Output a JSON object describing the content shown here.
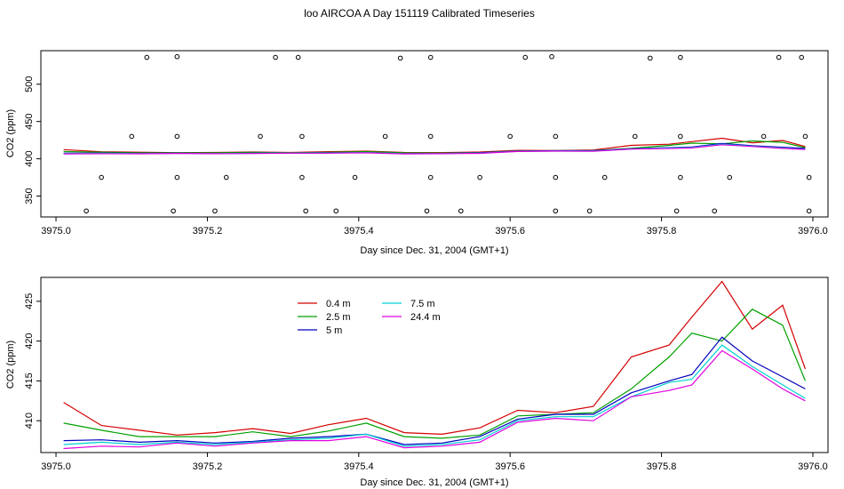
{
  "title": "loo AIRCOA A  Day 151119  Calibrated Timeseries",
  "colors": {
    "0.4 m": "#d40000",
    "2.5 m": "#00a000",
    "5 m": "#0000c0",
    "7.5 m": "#00d0d0",
    "24.4 m": "#e000e0"
  },
  "chart_data": [
    {
      "type": "scatter+line",
      "xlabel": "Day since Dec. 31, 2004 (GMT+1)",
      "ylabel": "CO2 (ppm)",
      "xlim": [
        3974.98,
        3976.02
      ],
      "ylim": [
        322,
        545
      ],
      "xticks": [
        "3975.0",
        "3975.2",
        "3975.4",
        "3975.6",
        "3975.8",
        "3976.0"
      ],
      "xtick_values": [
        3975.0,
        3975.2,
        3975.4,
        3975.6,
        3975.8,
        3976.0
      ],
      "yticks": [
        "350",
        "400",
        "450",
        "500"
      ],
      "ytick_values": [
        350,
        400,
        450,
        500
      ],
      "points_x": [
        3975.04,
        3975.06,
        3975.1,
        3975.12,
        3975.155,
        3975.16,
        3975.16,
        3975.16,
        3975.21,
        3975.225,
        3975.27,
        3975.29,
        3975.32,
        3975.325,
        3975.325,
        3975.33,
        3975.37,
        3975.395,
        3975.435,
        3975.455,
        3975.49,
        3975.495,
        3975.495,
        3975.495,
        3975.535,
        3975.56,
        3975.6,
        3975.62,
        3975.655,
        3975.66,
        3975.66,
        3975.66,
        3975.705,
        3975.725,
        3975.765,
        3975.785,
        3975.82,
        3975.825,
        3975.825,
        3975.825,
        3975.87,
        3975.89,
        3975.935,
        3975.955,
        3975.985,
        3975.99,
        3975.995,
        3975.995
      ],
      "points_y": [
        330,
        375,
        430,
        536,
        330,
        375,
        430,
        537,
        330,
        375,
        430,
        536,
        536,
        430,
        375,
        330,
        330,
        375,
        430,
        535,
        330,
        375,
        430,
        536,
        330,
        375,
        430,
        536,
        537,
        430,
        375,
        330,
        330,
        375,
        430,
        535,
        330,
        375,
        430,
        536,
        330,
        375,
        430,
        536,
        536,
        430,
        375,
        330
      ]
    },
    {
      "type": "line",
      "xlabel": "Day since Dec. 31, 2004 (GMT+1)",
      "ylabel": "CO2 (ppm)",
      "xlim": [
        3974.98,
        3976.02
      ],
      "ylim": [
        406,
        428
      ],
      "xticks": [
        "3975.0",
        "3975.2",
        "3975.4",
        "3975.6",
        "3975.8",
        "3976.0"
      ],
      "xtick_values": [
        3975.0,
        3975.2,
        3975.4,
        3975.6,
        3975.8,
        3976.0
      ],
      "yticks": [
        "410",
        "415",
        "420",
        "425"
      ],
      "ytick_values": [
        410,
        415,
        420,
        425
      ],
      "legend": [
        "0.4 m",
        "2.5 m",
        "5 m",
        "7.5 m",
        "24.4 m"
      ],
      "x": [
        3975.01,
        3975.06,
        3975.11,
        3975.16,
        3975.21,
        3975.26,
        3975.31,
        3975.36,
        3975.41,
        3975.46,
        3975.51,
        3975.56,
        3975.61,
        3975.66,
        3975.71,
        3975.76,
        3975.81,
        3975.84,
        3975.88,
        3975.92,
        3975.96,
        3975.99
      ],
      "series": [
        {
          "name": "0.4 m",
          "values": [
            412.3,
            409.4,
            408.8,
            408.2,
            408.5,
            409.0,
            408.4,
            409.5,
            410.3,
            408.5,
            408.3,
            409.1,
            411.3,
            411.0,
            411.8,
            418.0,
            419.5,
            423.0,
            427.5,
            421.5,
            424.5,
            416.5
          ]
        },
        {
          "name": "2.5 m",
          "values": [
            409.7,
            408.8,
            408.0,
            408.0,
            408.0,
            408.6,
            408.0,
            408.7,
            409.7,
            408.0,
            407.8,
            408.2,
            410.6,
            410.8,
            411.0,
            414.0,
            418.0,
            421.0,
            420.0,
            424.0,
            422.0,
            415.0
          ]
        },
        {
          "name": "5 m",
          "values": [
            407.5,
            407.6,
            407.3,
            407.5,
            407.2,
            407.4,
            407.8,
            408.0,
            408.3,
            407.0,
            407.2,
            408.0,
            410.2,
            410.8,
            410.8,
            413.5,
            415.0,
            415.8,
            420.5,
            417.5,
            415.5,
            414.0
          ]
        },
        {
          "name": "7.5 m",
          "values": [
            407.0,
            407.3,
            407.0,
            407.3,
            407.0,
            407.3,
            407.6,
            407.8,
            408.3,
            406.8,
            407.0,
            407.6,
            410.0,
            410.5,
            410.5,
            413.0,
            414.8,
            415.2,
            419.5,
            416.8,
            414.5,
            412.8
          ]
        },
        {
          "name": "24.4 m",
          "values": [
            406.5,
            406.8,
            406.7,
            407.2,
            406.8,
            407.2,
            407.5,
            407.5,
            408.0,
            406.6,
            406.8,
            407.3,
            409.8,
            410.3,
            410.0,
            413.0,
            413.8,
            414.5,
            418.8,
            416.5,
            414.0,
            412.5
          ]
        }
      ]
    }
  ]
}
